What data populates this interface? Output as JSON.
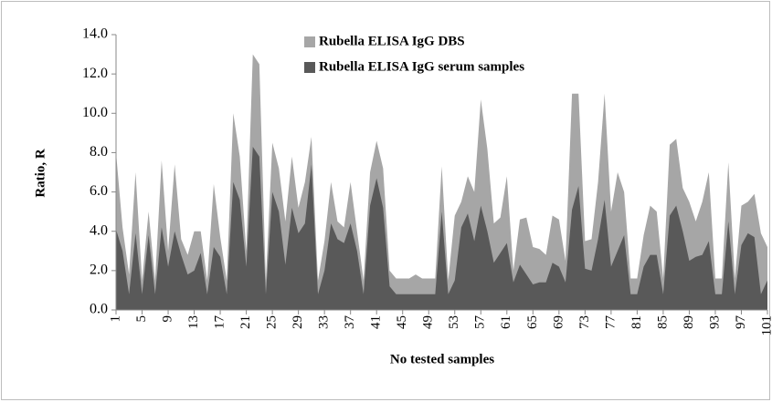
{
  "chart_data": {
    "type": "area",
    "ylabel": "Ratio, R",
    "xlabel": "No tested samples",
    "categories": [
      "1",
      null,
      null,
      null,
      "5",
      null,
      null,
      null,
      "9",
      null,
      null,
      null,
      "13",
      null,
      null,
      null,
      "17",
      null,
      null,
      null,
      "21",
      null,
      null,
      null,
      "25",
      null,
      null,
      null,
      "29",
      null,
      null,
      null,
      "33",
      null,
      null,
      null,
      "37",
      null,
      null,
      null,
      "41",
      null,
      null,
      null,
      "45",
      null,
      null,
      null,
      "49",
      null,
      null,
      null,
      "53",
      null,
      null,
      null,
      "57",
      null,
      null,
      null,
      "61",
      null,
      null,
      null,
      "65",
      null,
      null,
      null,
      "69",
      null,
      null,
      null,
      "73",
      null,
      null,
      null,
      "77",
      null,
      null,
      null,
      "81",
      null,
      null,
      null,
      "85",
      null,
      null,
      null,
      "89",
      null,
      null,
      null,
      "93",
      null,
      null,
      null,
      "97",
      null,
      null,
      null,
      "101"
    ],
    "series": [
      {
        "name": "Rubella ELISA IgG DBS",
        "color": "#a6a6a6",
        "values": [
          8.0,
          4.2,
          1.8,
          7.0,
          1.5,
          5.0,
          1.5,
          7.6,
          3.0,
          7.4,
          3.6,
          2.8,
          4.0,
          4.0,
          1.5,
          6.4,
          3.7,
          1.5,
          10.0,
          7.8,
          3.0,
          13.0,
          12.5,
          1.5,
          8.5,
          7.2,
          4.5,
          7.8,
          5.2,
          6.5,
          8.8,
          1.5,
          3.5,
          6.5,
          4.5,
          4.2,
          6.5,
          4.0,
          1.5,
          7.0,
          8.6,
          7.2,
          2.0,
          1.6,
          1.6,
          1.6,
          1.8,
          1.6,
          1.6,
          1.6,
          7.3,
          1.5,
          4.8,
          5.5,
          6.8,
          6.0,
          10.7,
          8.2,
          4.4,
          4.7,
          6.8,
          2.0,
          4.6,
          4.7,
          3.2,
          3.1,
          2.8,
          4.8,
          4.6,
          2.5,
          11.0,
          11.0,
          3.5,
          3.6,
          6.5,
          11.0,
          5.0,
          7.0,
          6.0,
          1.6,
          1.6,
          3.8,
          5.3,
          5.0,
          1.6,
          8.4,
          8.7,
          6.2,
          5.5,
          4.5,
          5.5,
          7.0,
          1.6,
          1.6,
          7.5,
          1.6,
          5.3,
          5.5,
          5.9,
          3.9,
          3.2
        ]
      },
      {
        "name": "Rubella ELISA IgG serum samples",
        "color": "#595959",
        "values": [
          4.1,
          3.0,
          0.8,
          3.9,
          0.8,
          3.8,
          0.8,
          4.2,
          2.2,
          4.0,
          2.8,
          1.8,
          2.0,
          2.9,
          0.8,
          3.2,
          2.7,
          0.8,
          6.5,
          5.6,
          2.2,
          8.3,
          7.8,
          0.8,
          6.0,
          5.0,
          2.3,
          5.2,
          3.9,
          4.4,
          7.4,
          0.8,
          2.0,
          4.4,
          3.6,
          3.4,
          4.4,
          3.0,
          0.8,
          5.3,
          6.7,
          5.2,
          1.2,
          0.8,
          0.8,
          0.8,
          0.8,
          0.8,
          0.8,
          0.8,
          5.0,
          0.8,
          1.5,
          4.2,
          4.9,
          3.5,
          5.3,
          4.0,
          2.4,
          2.9,
          3.4,
          1.4,
          2.3,
          1.8,
          1.3,
          1.4,
          1.4,
          2.4,
          2.2,
          1.4,
          5.1,
          6.3,
          2.1,
          2.0,
          3.6,
          5.6,
          2.2,
          3.0,
          3.8,
          0.8,
          0.8,
          2.2,
          2.8,
          2.8,
          0.8,
          4.8,
          5.3,
          4.0,
          2.5,
          2.7,
          2.8,
          3.5,
          0.8,
          0.8,
          4.5,
          0.8,
          3.3,
          3.9,
          3.7,
          0.8,
          1.5
        ]
      }
    ],
    "ylim": [
      0,
      14
    ],
    "yticks": [
      {
        "value": 0,
        "label": "0.0"
      },
      {
        "value": 2,
        "label": "2.0"
      },
      {
        "value": 4,
        "label": "4.0"
      },
      {
        "value": 6,
        "label": "6.0"
      },
      {
        "value": 8,
        "label": "8.0"
      },
      {
        "value": 10,
        "label": "10.0"
      },
      {
        "value": 12,
        "label": "12.0"
      },
      {
        "value": 14,
        "label": "14.0"
      }
    ],
    "grid": false,
    "legend": "top"
  }
}
